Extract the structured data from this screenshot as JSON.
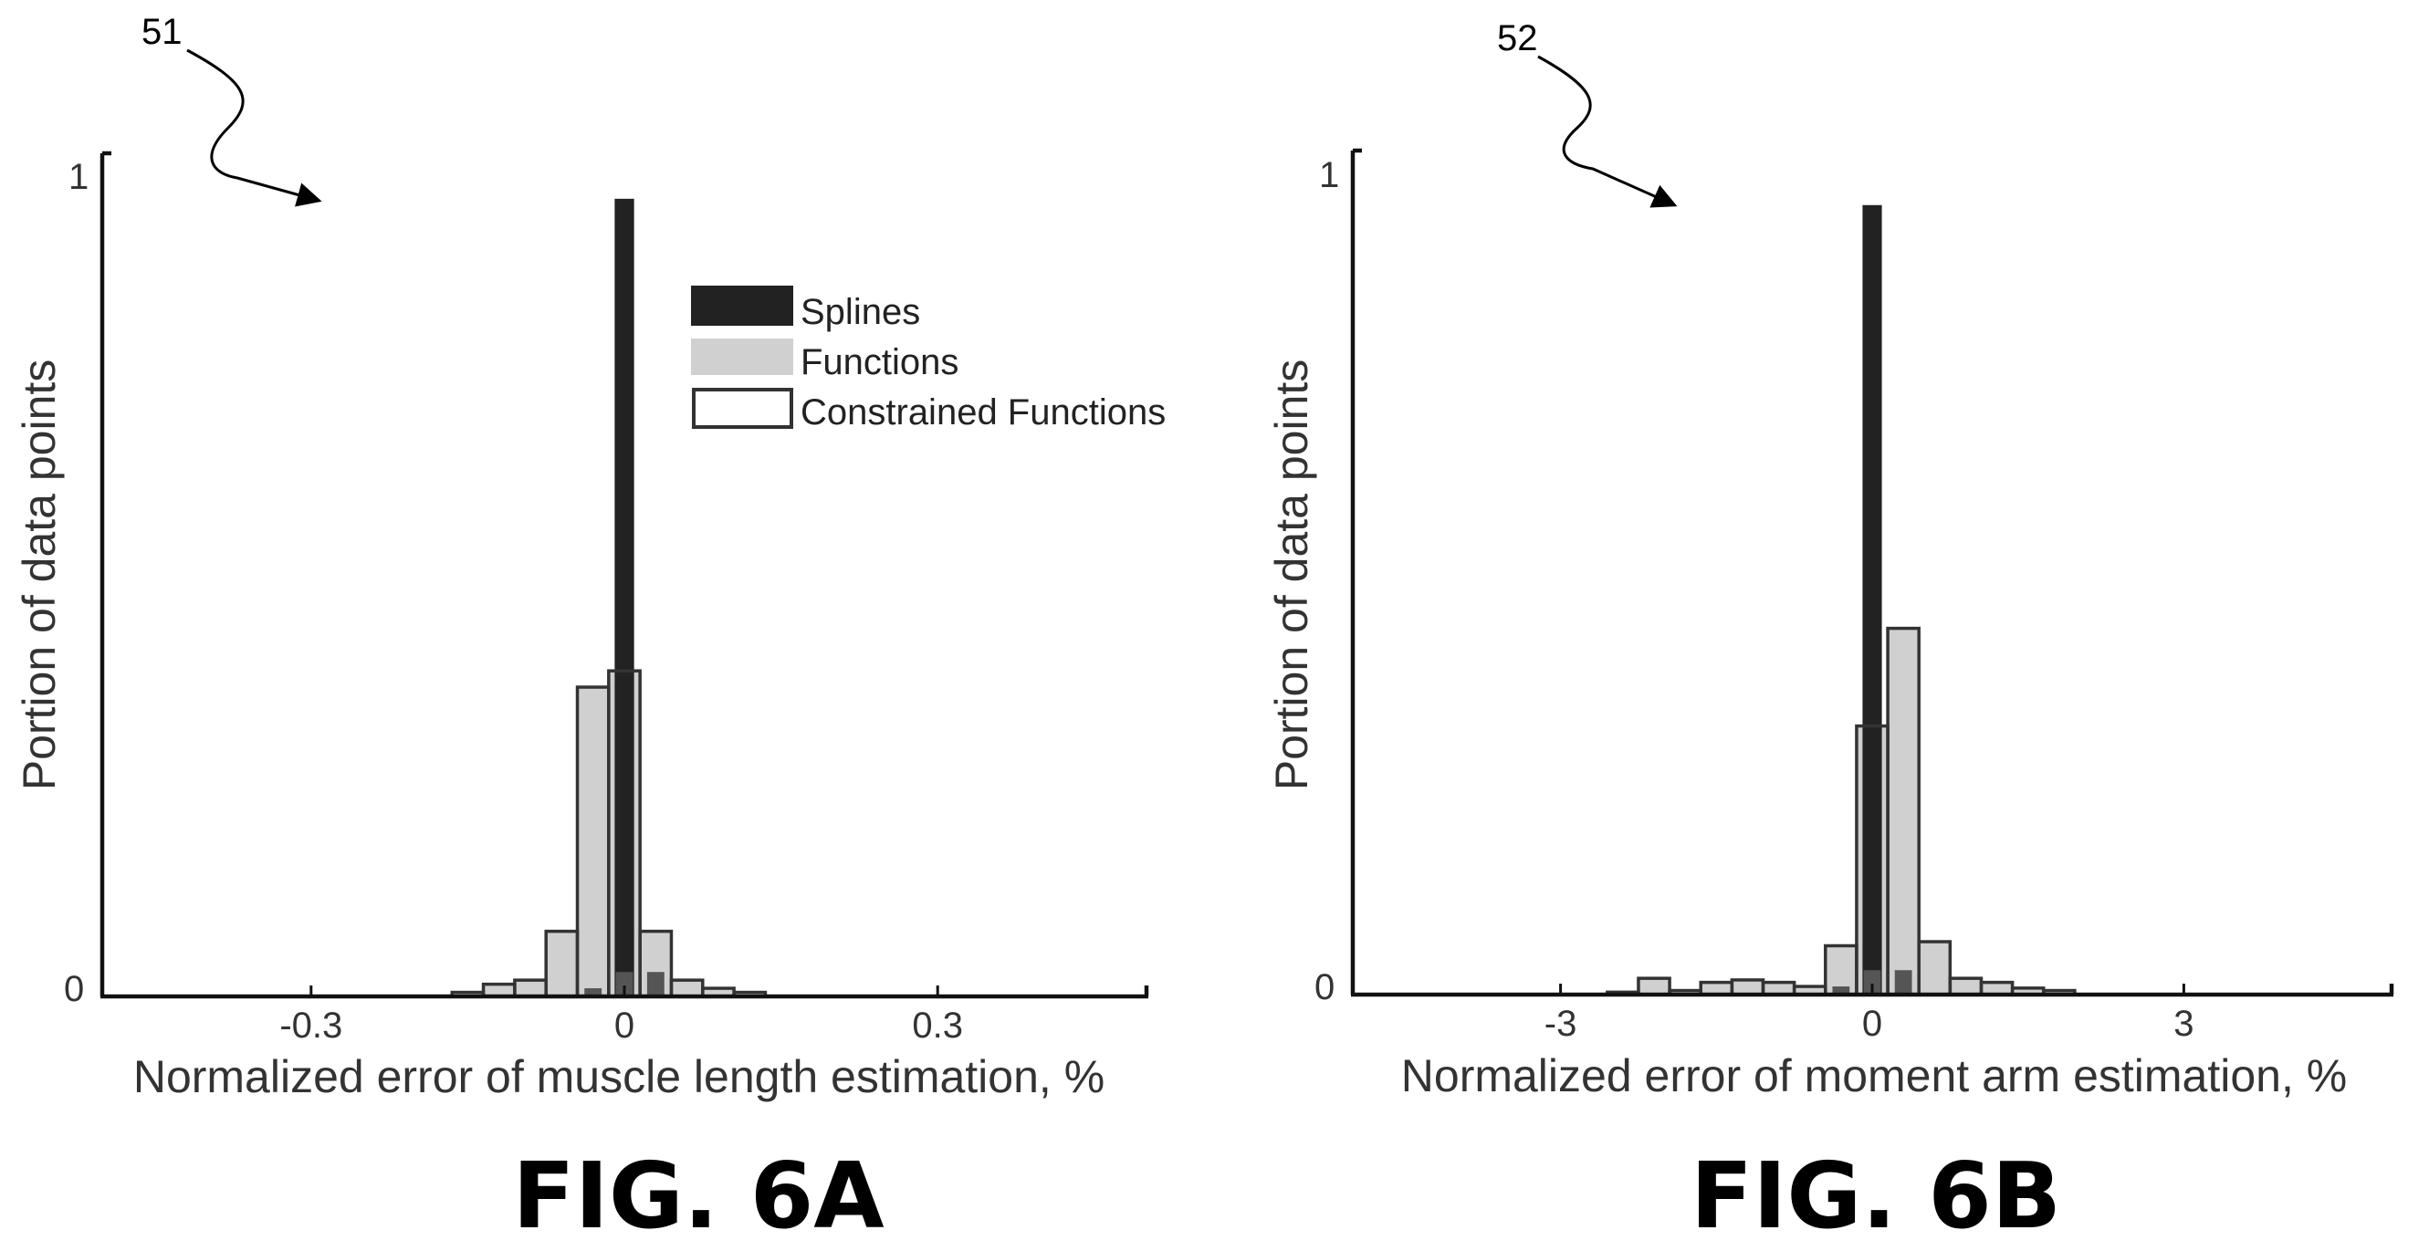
{
  "colors": {
    "splines": "#222222",
    "functions": "#d0d0d0",
    "overlap": "#555555",
    "constrained_stroke": "#333333",
    "axis": "#111111"
  },
  "chart_data": [
    {
      "type": "bar",
      "panel": "left",
      "caption": "FIG. 6A",
      "ref_numeral": "51",
      "title": "",
      "xlabel": "Normalized error of muscle length estimation, %",
      "ylabel": "Portion of data points",
      "xlim": [
        -0.5,
        0.5
      ],
      "ylim": [
        0,
        1
      ],
      "xticks": [
        -0.3,
        0,
        0.3
      ],
      "xtick_labels": [
        "-0.3",
        "0",
        "0.3"
      ],
      "yticks": [
        0,
        1
      ],
      "ytick_labels": [
        "0",
        "1"
      ],
      "bin_width": 0.03,
      "grid": false,
      "legend_position": "top-right",
      "legend": [
        "Splines",
        "Functions",
        "Constrained Functions"
      ],
      "series": [
        {
          "name": "Splines",
          "style": "splines",
          "x": [
            0
          ],
          "values": [
            0.98
          ]
        },
        {
          "name": "Functions",
          "style": "functions",
          "x": [
            -0.15,
            -0.12,
            -0.09,
            -0.06,
            -0.03,
            0,
            0.03,
            0.06,
            0.09,
            0.12
          ],
          "values": [
            0.005,
            0.015,
            0.02,
            0.08,
            0.38,
            0.4,
            0.08,
            0.02,
            0.01,
            0.005
          ]
        },
        {
          "name": "Constrained Functions",
          "style": "constrained",
          "x": [
            -0.15,
            -0.12,
            -0.09,
            -0.06,
            -0.03,
            0,
            0.03,
            0.06,
            0.09,
            0.12
          ],
          "values": [
            0.005,
            0.015,
            0.02,
            0.08,
            0.38,
            0.4,
            0.08,
            0.02,
            0.01,
            0.005
          ]
        },
        {
          "name": "",
          "style": "overlap",
          "x": [
            -0.03,
            0,
            0.03
          ],
          "values": [
            0.01,
            0.03,
            0.03
          ]
        }
      ]
    },
    {
      "type": "bar",
      "panel": "right",
      "caption": "FIG. 6B",
      "ref_numeral": "52",
      "title": "",
      "xlabel": "Normalized error of moment arm estimation, %",
      "ylabel": "Portion of data points",
      "xlim": [
        -5,
        5
      ],
      "ylim": [
        0,
        1
      ],
      "xticks": [
        -3,
        0,
        3
      ],
      "xtick_labels": [
        "-3",
        "0",
        "3"
      ],
      "yticks": [
        0,
        1
      ],
      "ytick_labels": [
        "0",
        "1"
      ],
      "bin_width": 0.3,
      "grid": false,
      "legend_position": "none",
      "legend": [],
      "series": [
        {
          "name": "Splines",
          "style": "splines",
          "x": [
            0
          ],
          "values": [
            0.97
          ]
        },
        {
          "name": "Functions",
          "style": "functions",
          "x": [
            -2.4,
            -2.1,
            -1.8,
            -1.5,
            -1.2,
            -0.9,
            -0.6,
            -0.3,
            0,
            0.3,
            0.6,
            0.9,
            1.2,
            1.5,
            1.8
          ],
          "values": [
            0.003,
            0.02,
            0.005,
            0.015,
            0.018,
            0.015,
            0.01,
            0.06,
            0.33,
            0.45,
            0.065,
            0.02,
            0.015,
            0.008,
            0.005
          ]
        },
        {
          "name": "Constrained Functions",
          "style": "constrained",
          "x": [
            -2.4,
            -2.1,
            -1.8,
            -1.5,
            -1.2,
            -0.9,
            -0.6,
            -0.3,
            0,
            0.3,
            0.6,
            0.9,
            1.2,
            1.5,
            1.8
          ],
          "values": [
            0.003,
            0.02,
            0.005,
            0.015,
            0.018,
            0.015,
            0.01,
            0.06,
            0.33,
            0.45,
            0.065,
            0.02,
            0.015,
            0.008,
            0.005
          ]
        },
        {
          "name": "",
          "style": "overlap",
          "x": [
            -0.3,
            0,
            0.3
          ],
          "values": [
            0.01,
            0.03,
            0.03
          ]
        }
      ]
    }
  ]
}
